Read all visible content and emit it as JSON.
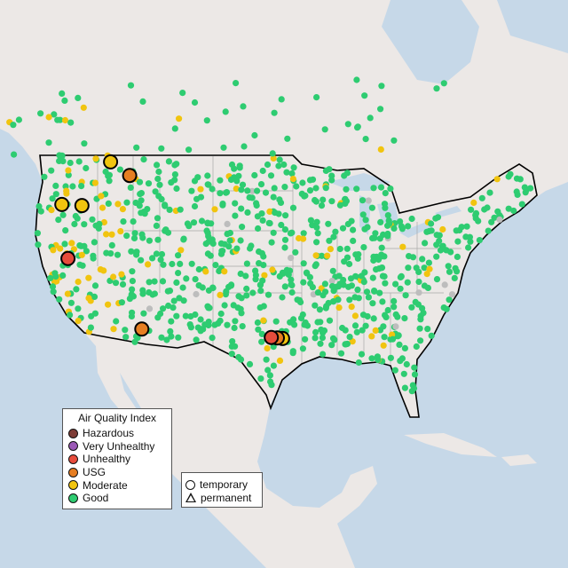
{
  "legend": {
    "title": "Air Quality Index",
    "categories": [
      {
        "label": "Hazardous",
        "color": "#7d3c36"
      },
      {
        "label": "Very Unhealthy",
        "color": "#9b59b6"
      },
      {
        "label": "Unhealthy",
        "color": "#e74c3c"
      },
      {
        "label": "USG",
        "color": "#e67e22"
      },
      {
        "label": "Moderate",
        "color": "#f1c40f"
      },
      {
        "label": "Good",
        "color": "#2ecc71"
      }
    ]
  },
  "type_legend": {
    "items": [
      {
        "label": "temporary",
        "shape": "circle"
      },
      {
        "label": "permanent",
        "shape": "triangle"
      }
    ]
  },
  "map_colors": {
    "land": "#ece8e6",
    "water": "#c6d8e8",
    "border": "#000000",
    "state_lines": "#a8a8a8",
    "no_data": "#bdbdbd"
  },
  "large_markers": [
    {
      "lat": 49.1,
      "lon": -115.5,
      "category": "Moderate",
      "type": "temporary"
    },
    {
      "lat": 47.8,
      "lon": -113.3,
      "category": "USG",
      "type": "temporary"
    },
    {
      "lat": 45.0,
      "lon": -121.1,
      "category": "Moderate",
      "type": "temporary"
    },
    {
      "lat": 44.9,
      "lon": -118.8,
      "category": "Moderate",
      "type": "temporary"
    },
    {
      "lat": 39.8,
      "lon": -120.4,
      "category": "Unhealthy",
      "type": "temporary"
    },
    {
      "lat": 33.0,
      "lon": -111.9,
      "category": "USG",
      "type": "temporary"
    },
    {
      "lat": 32.1,
      "lon": -95.7,
      "category": "Moderate",
      "type": "temporary"
    },
    {
      "lat": 32.15,
      "lon": -96.3,
      "category": "USG",
      "type": "temporary"
    },
    {
      "lat": 32.2,
      "lon": -97.0,
      "category": "Unhealthy",
      "type": "temporary"
    }
  ]
}
